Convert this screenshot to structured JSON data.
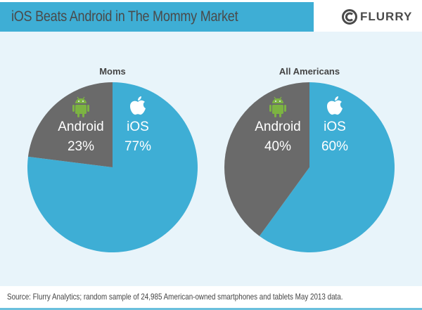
{
  "header": {
    "title": "iOS Beats Android in The Mommy Market",
    "logo_text": "FLURRY",
    "logo_icon": "flurry-swirl-icon"
  },
  "footer": {
    "source": "Source: Flurry Analytics; random sample of 24,985 American-owned smartphones and tablets May 2013 data."
  },
  "colors": {
    "ios": "#3eaed5",
    "android": "#6a6a6a",
    "android_icon": "#7cb342",
    "background": "#e8f4fa"
  },
  "chart_data": [
    {
      "type": "pie",
      "title": "Moms",
      "slices": [
        {
          "label": "Android",
          "value": 23,
          "display": "23%",
          "icon": "android-icon"
        },
        {
          "label": "iOS",
          "value": 77,
          "display": "77%",
          "icon": "apple-icon"
        }
      ]
    },
    {
      "type": "pie",
      "title": "All Americans",
      "slices": [
        {
          "label": "Android",
          "value": 40,
          "display": "40%",
          "icon": "android-icon"
        },
        {
          "label": "iOS",
          "value": 60,
          "display": "60%",
          "icon": "apple-icon"
        }
      ]
    }
  ]
}
